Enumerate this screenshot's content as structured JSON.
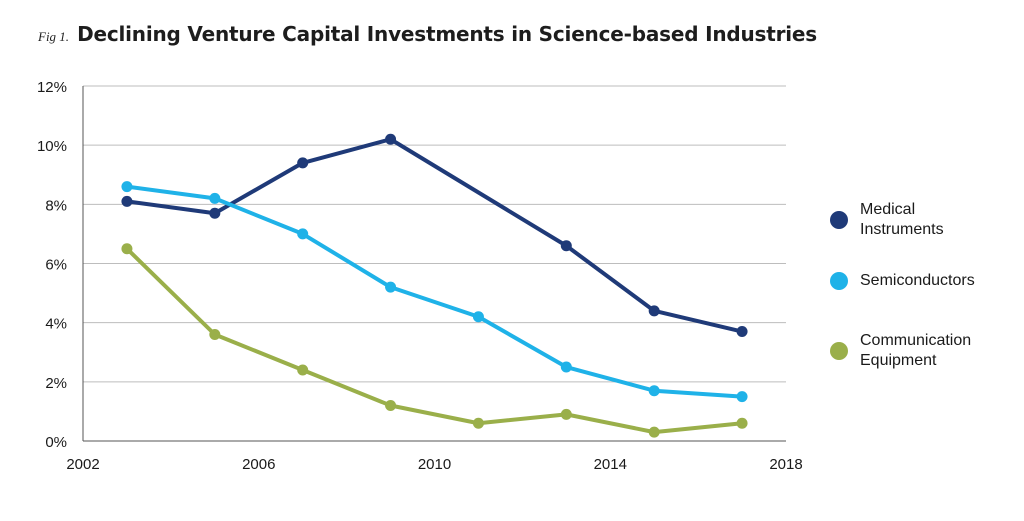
{
  "figure": {
    "fig_label": "Fig 1.",
    "title": "Declining Venture Capital Investments in Science-based Industries"
  },
  "chart_data": {
    "type": "line",
    "title": "Declining Venture Capital Investments in Science-based Industries",
    "xlabel": "",
    "ylabel": "",
    "xlim": [
      2002,
      2018
    ],
    "ylim": [
      0,
      12
    ],
    "x_ticks": [
      "2002",
      "2006",
      "2010",
      "2014",
      "2018"
    ],
    "y_ticks": [
      "0%",
      "2%",
      "4%",
      "6%",
      "8%",
      "10%",
      "12%"
    ],
    "grid": "horizontal",
    "legend_position": "right",
    "x": [
      2003,
      2005,
      2007,
      2009,
      2011,
      2013,
      2015,
      2017
    ],
    "series": [
      {
        "name": "Medical\nInstruments",
        "color": "#1f3a78",
        "values": [
          8.1,
          7.7,
          9.4,
          10.2,
          null,
          6.6,
          4.4,
          3.7
        ]
      },
      {
        "name": "Semiconductors",
        "color": "#1fb2e8",
        "values": [
          8.6,
          8.2,
          7.0,
          5.2,
          4.2,
          2.5,
          1.7,
          1.5
        ]
      },
      {
        "name": "Communication\nEquipment",
        "color": "#9aaf4a",
        "values": [
          6.5,
          3.6,
          2.4,
          1.2,
          0.6,
          0.9,
          0.3,
          0.6
        ]
      }
    ]
  }
}
